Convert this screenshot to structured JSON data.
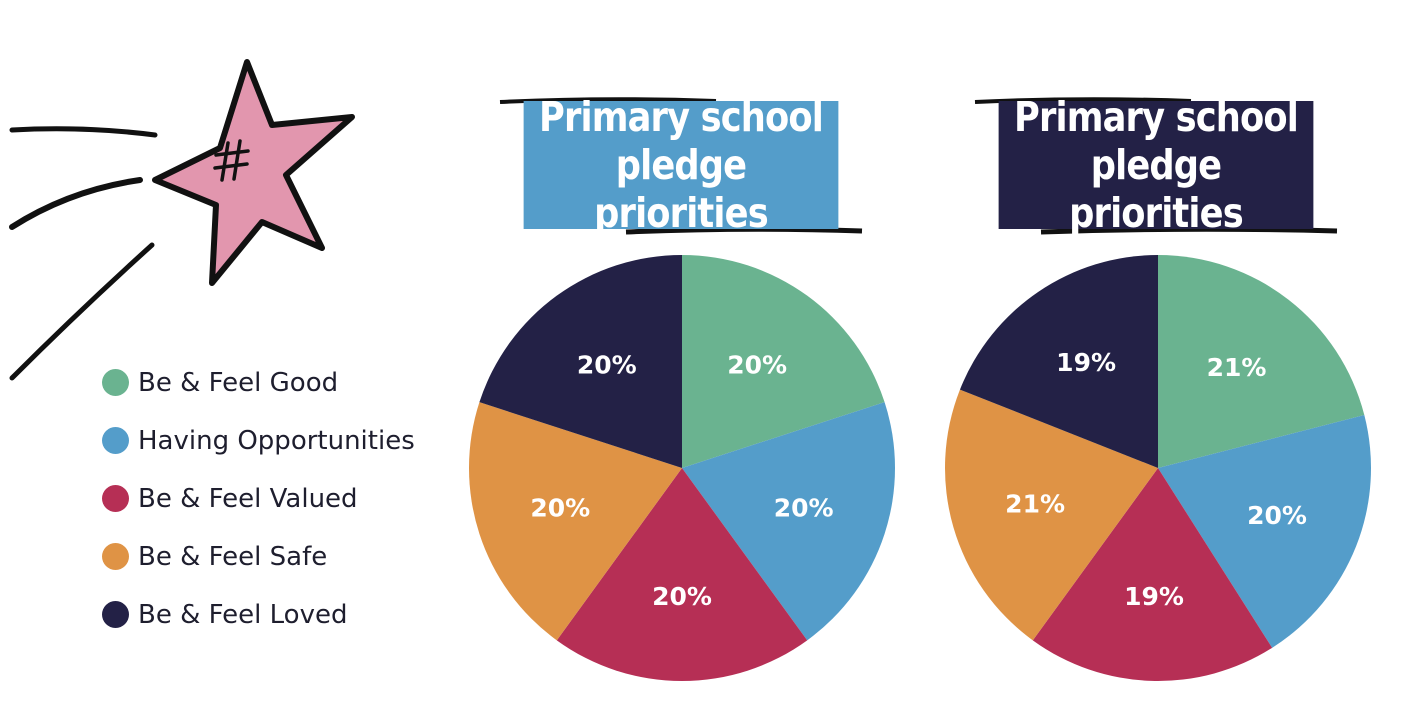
{
  "legend": [
    {
      "label": "Be & Feel Good",
      "color": "#6ab390"
    },
    {
      "label": "Having Opportunities",
      "color": "#549dca"
    },
    {
      "label": "Be & Feel Valued",
      "color": "#b62f55"
    },
    {
      "label": "Be & Feel Safe",
      "color": "#df9345"
    },
    {
      "label": "Be & Feel Loved",
      "color": "#232146"
    }
  ],
  "decoration": {
    "star_icon": "pink-star-icon",
    "star_color": "#e296ae",
    "hashtag": "#"
  },
  "chart_data": [
    {
      "type": "pie",
      "title": "Primary school\npledge priorities",
      "title_bg": "#549dca",
      "labels": [
        "Be & Feel Good",
        "Having Opportunities",
        "Be & Feel Valued",
        "Be & Feel Safe",
        "Be & Feel Loved"
      ],
      "values": [
        20,
        20,
        20,
        20,
        20
      ],
      "value_labels": [
        "20%",
        "20%",
        "20%",
        "20%",
        "20%"
      ],
      "colors": [
        "#6ab390",
        "#549dca",
        "#b62f55",
        "#df9345",
        "#232146"
      ]
    },
    {
      "type": "pie",
      "title": "Primary school\npledge priorities",
      "title_bg": "#232146",
      "labels": [
        "Be & Feel Good",
        "Having Opportunities",
        "Be & Feel Valued",
        "Be & Feel Safe",
        "Be & Feel Loved"
      ],
      "values": [
        21,
        20,
        19,
        21,
        19
      ],
      "value_labels": [
        "21%",
        "20%",
        "19%",
        "21%",
        "19%"
      ],
      "colors": [
        "#6ab390",
        "#549dca",
        "#b62f55",
        "#df9345",
        "#232146"
      ]
    }
  ]
}
